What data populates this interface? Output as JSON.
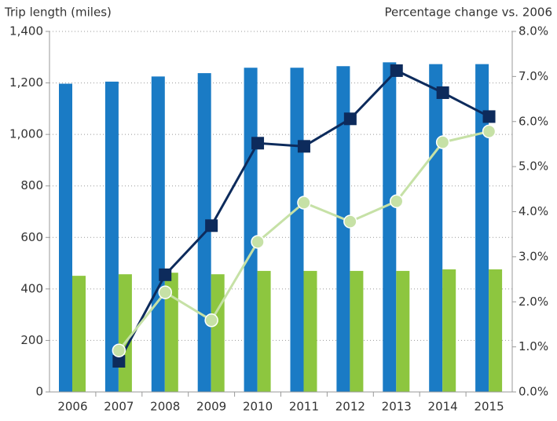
{
  "chart_data": {
    "type": "bar_line",
    "y_label": "Trip length (miles)",
    "y2_label": "Percentage change vs. 2006",
    "categories": [
      "2006",
      "2007",
      "2008",
      "2009",
      "2010",
      "2011",
      "2012",
      "2013",
      "2014",
      "2015"
    ],
    "series": [
      {
        "type": "bar",
        "color": "#1a7bc5",
        "values": [
          1197,
          1205,
          1225,
          1238,
          1259,
          1259,
          1265,
          1280,
          1273,
          1273
        ]
      },
      {
        "type": "bar",
        "color": "#8dc63f",
        "values": [
          451,
          457,
          463,
          457,
          470,
          470,
          470,
          470,
          476,
          476
        ]
      },
      {
        "type": "line",
        "axis": "y2",
        "marker": "square",
        "color": "#0d2b5c",
        "values": [
          null,
          0.68,
          2.6,
          3.69,
          5.52,
          5.45,
          6.06,
          7.13,
          6.64,
          6.11
        ]
      },
      {
        "type": "line",
        "axis": "y2",
        "marker": "circle",
        "color": "#c6e1a6",
        "values": [
          null,
          0.92,
          2.21,
          1.59,
          3.33,
          4.2,
          3.78,
          4.23,
          5.54,
          5.78
        ]
      }
    ],
    "ylim": [
      0,
      1400
    ],
    "yticks": [
      0,
      200,
      400,
      600,
      800,
      {
        "value": 1000,
        "label": "1,000"
      },
      {
        "value": 1200,
        "label": "1,200"
      },
      {
        "value": 1400,
        "label": "1,400"
      }
    ],
    "y2lim": [
      0,
      8
    ],
    "y2ticks": [
      {
        "value": 0,
        "label": "0.0%"
      },
      {
        "value": 1,
        "label": "1.0%"
      },
      {
        "value": 2,
        "label": "2.0%"
      },
      {
        "value": 3,
        "label": "3.0%"
      },
      {
        "value": 4,
        "label": "4.0%"
      },
      {
        "value": 5,
        "label": "5.0%"
      },
      {
        "value": 6,
        "label": "6.0%"
      },
      {
        "value": 7,
        "label": "7.0%"
      },
      {
        "value": 8,
        "label": "8.0%"
      }
    ],
    "grid": true
  }
}
